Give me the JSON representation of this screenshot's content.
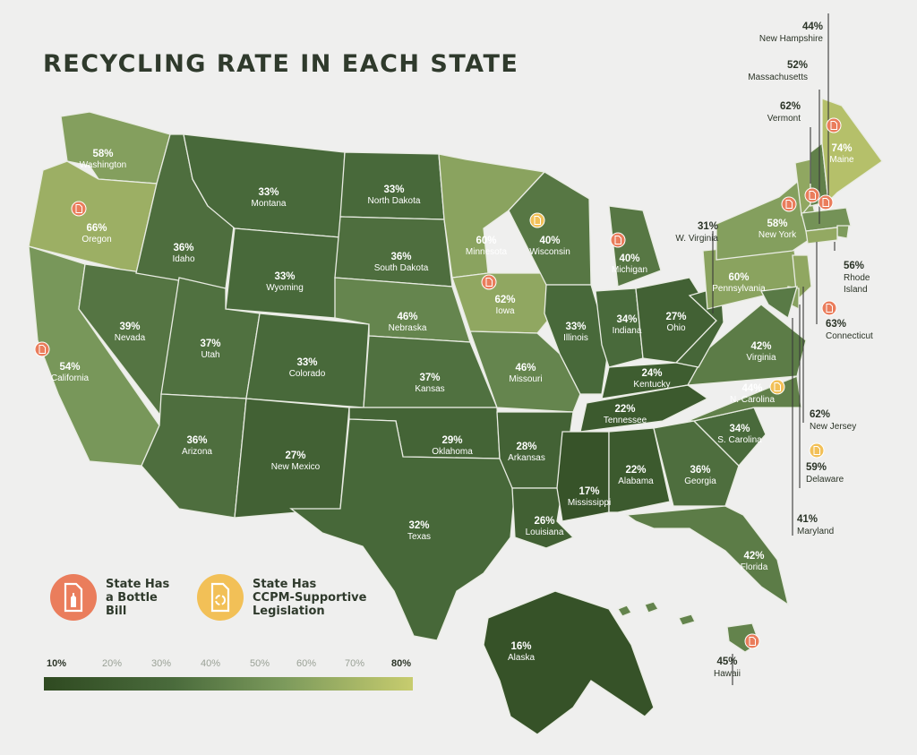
{
  "title": "RECYCLING RATE IN EACH STATE",
  "colors": {
    "bottle_bill": "#ea7d5c",
    "ccpm": "#f2c057",
    "scale_low": "#2f4a21",
    "scale_high": "#c7cc6e"
  },
  "legend": {
    "bottle_bill": {
      "label": "State Has\na Bottle\nBill",
      "icon": "bottle-icon"
    },
    "ccpm": {
      "label": "State Has\nCCPM-Supportive\nLegislation",
      "icon": "recycle-document-icon"
    }
  },
  "scale": {
    "labels": [
      "10%",
      "20%",
      "30%",
      "40%",
      "50%",
      "60%",
      "70%",
      "80%"
    ],
    "min": 10,
    "max": 80
  },
  "states": [
    {
      "id": "WA",
      "name": "Washington",
      "rate": 58,
      "pct": "58%"
    },
    {
      "id": "OR",
      "name": "Oregon",
      "rate": 66,
      "pct": "66%",
      "bottle_bill": true
    },
    {
      "id": "CA",
      "name": "California",
      "rate": 54,
      "pct": "54%",
      "bottle_bill": true,
      "ccpm": true
    },
    {
      "id": "NV",
      "name": "Nevada",
      "rate": 39,
      "pct": "39%"
    },
    {
      "id": "ID",
      "name": "Idaho",
      "rate": 36,
      "pct": "36%"
    },
    {
      "id": "MT",
      "name": "Montana",
      "rate": 33,
      "pct": "33%"
    },
    {
      "id": "WY",
      "name": "Wyoming",
      "rate": 33,
      "pct": "33%"
    },
    {
      "id": "UT",
      "name": "Utah",
      "rate": 37,
      "pct": "37%"
    },
    {
      "id": "AZ",
      "name": "Arizona",
      "rate": 36,
      "pct": "36%"
    },
    {
      "id": "CO",
      "name": "Colorado",
      "rate": 33,
      "pct": "33%"
    },
    {
      "id": "NM",
      "name": "New Mexico",
      "rate": 27,
      "pct": "27%"
    },
    {
      "id": "ND",
      "name": "North Dakota",
      "rate": 33,
      "pct": "33%"
    },
    {
      "id": "SD",
      "name": "South Dakota",
      "rate": 36,
      "pct": "36%"
    },
    {
      "id": "NE",
      "name": "Nebraska",
      "rate": 46,
      "pct": "46%"
    },
    {
      "id": "KS",
      "name": "Kansas",
      "rate": 37,
      "pct": "37%"
    },
    {
      "id": "OK",
      "name": "Oklahoma",
      "rate": 29,
      "pct": "29%"
    },
    {
      "id": "TX",
      "name": "Texas",
      "rate": 32,
      "pct": "32%"
    },
    {
      "id": "MN",
      "name": "Minnesota",
      "rate": 60,
      "pct": "60%"
    },
    {
      "id": "IA",
      "name": "Iowa",
      "rate": 62,
      "pct": "62%",
      "bottle_bill": true
    },
    {
      "id": "MO",
      "name": "Missouri",
      "rate": 46,
      "pct": "46%"
    },
    {
      "id": "AR",
      "name": "Arkansas",
      "rate": 28,
      "pct": "28%"
    },
    {
      "id": "LA",
      "name": "Louisiana",
      "rate": 26,
      "pct": "26%"
    },
    {
      "id": "WI",
      "name": "Wisconsin",
      "rate": 40,
      "pct": "40%",
      "ccpm": true
    },
    {
      "id": "IL",
      "name": "Illinois",
      "rate": 33,
      "pct": "33%"
    },
    {
      "id": "MI",
      "name": "Michigan",
      "rate": 40,
      "pct": "40%",
      "bottle_bill": true
    },
    {
      "id": "IN",
      "name": "Indiana",
      "rate": 34,
      "pct": "34%"
    },
    {
      "id": "OH",
      "name": "Ohio",
      "rate": 27,
      "pct": "27%"
    },
    {
      "id": "KY",
      "name": "Kentucky",
      "rate": 24,
      "pct": "24%"
    },
    {
      "id": "TN",
      "name": "Tennessee",
      "rate": 22,
      "pct": "22%"
    },
    {
      "id": "MS",
      "name": "Mississippi",
      "rate": 17,
      "pct": "17%"
    },
    {
      "id": "AL",
      "name": "Alabama",
      "rate": 22,
      "pct": "22%"
    },
    {
      "id": "GA",
      "name": "Georgia",
      "rate": 36,
      "pct": "36%"
    },
    {
      "id": "FL",
      "name": "Florida",
      "rate": 42,
      "pct": "42%"
    },
    {
      "id": "SC",
      "name": "S. Carolina",
      "rate": 34,
      "pct": "34%"
    },
    {
      "id": "NC",
      "name": "N. Carolina",
      "rate": 44,
      "pct": "44%",
      "ccpm": true
    },
    {
      "id": "VA",
      "name": "Virginia",
      "rate": 42,
      "pct": "42%"
    },
    {
      "id": "WV",
      "name": "W. Virginia",
      "rate": 31,
      "pct": "31%"
    },
    {
      "id": "PA",
      "name": "Pennsylvania",
      "rate": 60,
      "pct": "60%"
    },
    {
      "id": "NY",
      "name": "New York",
      "rate": 58,
      "pct": "58%",
      "bottle_bill": true
    },
    {
      "id": "VT",
      "name": "Vermont",
      "rate": 62,
      "pct": "62%",
      "bottle_bill": true
    },
    {
      "id": "NH",
      "name": "New Hampshire",
      "rate": 44,
      "pct": "44%"
    },
    {
      "id": "ME",
      "name": "Maine",
      "rate": 74,
      "pct": "74%",
      "bottle_bill": true
    },
    {
      "id": "MA",
      "name": "Massachusetts",
      "rate": 52,
      "pct": "52%",
      "bottle_bill": true
    },
    {
      "id": "RI",
      "name": "Rhode Island",
      "rate": 56,
      "pct": "56%"
    },
    {
      "id": "CT",
      "name": "Connecticut",
      "rate": 63,
      "pct": "63%",
      "bottle_bill": true
    },
    {
      "id": "NJ",
      "name": "New Jersey",
      "rate": 62,
      "pct": "62%"
    },
    {
      "id": "DE",
      "name": "Delaware",
      "rate": 59,
      "pct": "59%",
      "ccpm": true
    },
    {
      "id": "MD",
      "name": "Maryland",
      "rate": 41,
      "pct": "41%"
    },
    {
      "id": "AK",
      "name": "Alaska",
      "rate": 16,
      "pct": "16%"
    },
    {
      "id": "HI",
      "name": "Hawaii",
      "rate": 45,
      "pct": "45%",
      "bottle_bill": true
    }
  ]
}
